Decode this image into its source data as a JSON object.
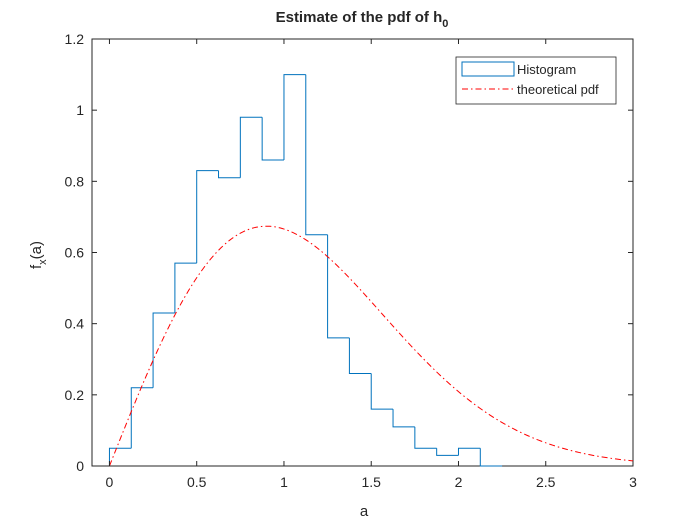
{
  "chart_data": {
    "type": "bar",
    "title": "Estimate of the pdf of h",
    "title_subscript": "0",
    "xlabel": "a",
    "ylabel": "f",
    "ylabel_subscript": "x",
    "ylabel_suffix": "(a)",
    "xlim": [
      -0.1,
      3
    ],
    "ylim": [
      0,
      1.2
    ],
    "xticks": [
      "0",
      "0.5",
      "1",
      "1.5",
      "2",
      "2.5",
      "3"
    ],
    "yticks": [
      "0",
      "0.2",
      "0.4",
      "0.6",
      "0.8",
      "1",
      "1.2"
    ],
    "grid": false,
    "legend_location": "top-right",
    "series": [
      {
        "name": "Histogram",
        "style": "stairs",
        "color": "#0072BD",
        "bin_edges": [
          0,
          0.125,
          0.25,
          0.375,
          0.5,
          0.625,
          0.75,
          0.875,
          1.0,
          1.125,
          1.25,
          1.375,
          1.5,
          1.625,
          1.75,
          1.875,
          2.0,
          2.125,
          2.25
        ],
        "values": [
          0.05,
          0.22,
          0.43,
          0.57,
          0.83,
          0.81,
          0.98,
          0.86,
          1.1,
          0.65,
          0.36,
          0.26,
          0.16,
          0.11,
          0.05,
          0.03,
          0.05,
          0.0
        ]
      },
      {
        "name": "theoretical pdf",
        "style": "dash-dot",
        "color": "#FF0000",
        "distribution": "rayleigh",
        "mode": 0.9,
        "x_range": [
          0,
          3
        ]
      }
    ]
  }
}
